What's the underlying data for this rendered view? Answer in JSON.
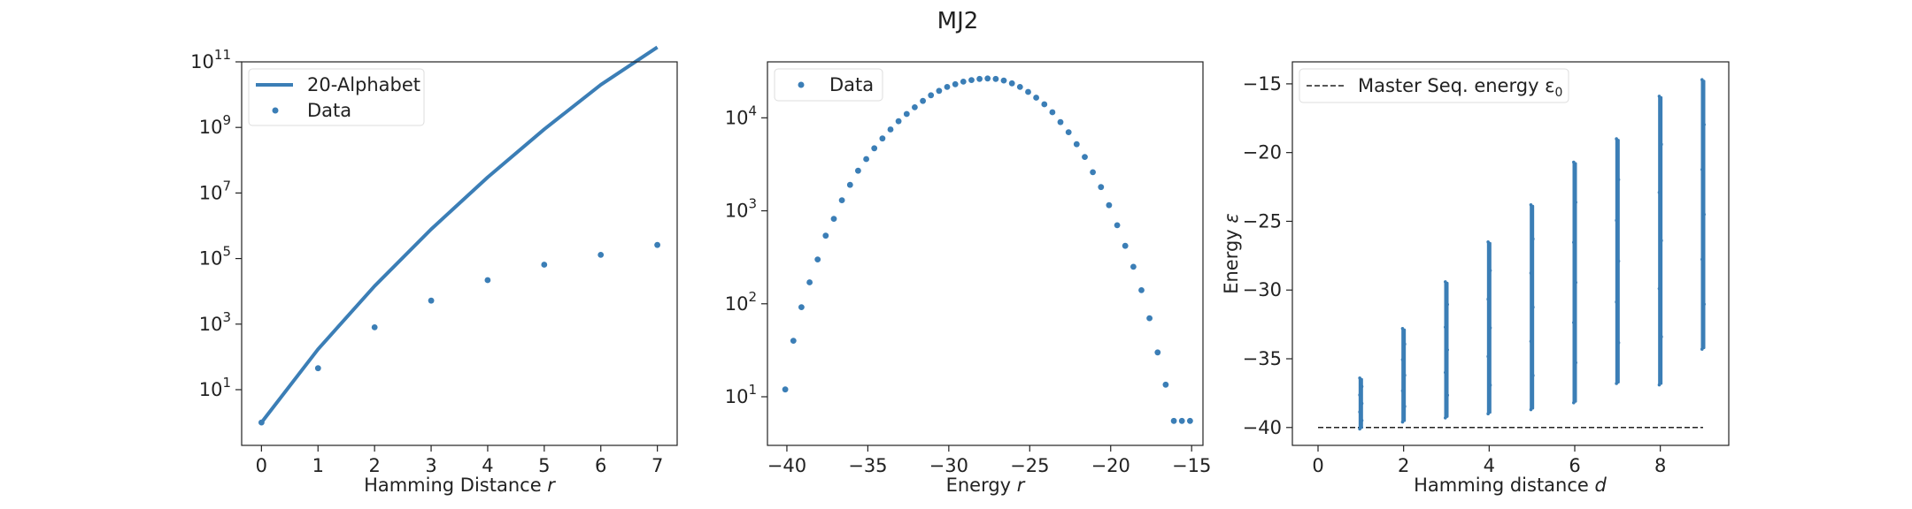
{
  "figure": {
    "title": "MJ2",
    "series_color": "#3b7eb6"
  },
  "chart_data": [
    {
      "type": "line",
      "xlabel": "Hamming Distance r",
      "ylabel": "",
      "yscale": "log",
      "xlim": [
        -0.35,
        7.35
      ],
      "ylim": [
        0.2,
        100000000000
      ],
      "x_ticks": [
        0,
        1,
        2,
        3,
        4,
        5,
        6,
        7
      ],
      "y_ticks": [
        10,
        1000,
        100000,
        10000000,
        1000000000,
        100000000000
      ],
      "y_tick_labels": [
        {
          "base": "10",
          "exp": "1"
        },
        {
          "base": "10",
          "exp": "3"
        },
        {
          "base": "10",
          "exp": "5"
        },
        {
          "base": "10",
          "exp": "7"
        },
        {
          "base": "10",
          "exp": "9"
        },
        {
          "base": "10",
          "exp": "11"
        }
      ],
      "grid": false,
      "legend": "upper-left",
      "series": [
        {
          "name": "20-Alphabet",
          "kind": "line",
          "x": [
            0,
            1,
            2,
            3,
            4,
            5,
            6,
            7
          ],
          "y": [
            1,
            171,
            14535,
            785460,
            30239000,
            877000000,
            20000000000,
            280000000000
          ]
        },
        {
          "name": "Data",
          "kind": "points",
          "x": [
            0,
            1,
            2,
            3,
            4,
            5,
            6,
            7
          ],
          "y": [
            1,
            45,
            800,
            5200,
            22000,
            65000,
            130000,
            260000
          ]
        }
      ]
    },
    {
      "type": "scatter",
      "xlabel": "Energy r",
      "ylabel": "",
      "yscale": "log",
      "xlim": [
        -41.2,
        -14.3
      ],
      "ylim": [
        3,
        40000
      ],
      "x_ticks": [
        -40,
        -35,
        -30,
        -25,
        -20,
        -15
      ],
      "x_tick_labels": [
        "−40",
        "−35",
        "−30",
        "−25",
        "−20",
        "−15"
      ],
      "y_ticks": [
        10,
        100,
        1000,
        10000
      ],
      "y_tick_labels": [
        {
          "base": "10",
          "exp": "1"
        },
        {
          "base": "10",
          "exp": "2"
        },
        {
          "base": "10",
          "exp": "3"
        },
        {
          "base": "10",
          "exp": "4"
        }
      ],
      "grid": false,
      "legend": "upper-left",
      "series": [
        {
          "name": "Data",
          "kind": "points",
          "x": [
            -40.1,
            -39.6,
            -39.1,
            -38.6,
            -38.1,
            -37.6,
            -37.1,
            -36.6,
            -36.1,
            -35.6,
            -35.1,
            -34.6,
            -34.1,
            -33.6,
            -33.1,
            -32.6,
            -32.1,
            -31.6,
            -31.1,
            -30.6,
            -30.1,
            -29.6,
            -29.1,
            -28.6,
            -28.1,
            -27.6,
            -27.1,
            -26.6,
            -26.1,
            -25.6,
            -25.1,
            -24.6,
            -24.1,
            -23.6,
            -23.1,
            -22.6,
            -22.1,
            -21.6,
            -21.1,
            -20.6,
            -20.1,
            -19.6,
            -19.1,
            -18.6,
            -18.1,
            -17.6,
            -17.1,
            -16.6,
            -16.1,
            -15.6,
            -15.1
          ],
          "y": [
            12,
            40,
            92,
            170,
            300,
            540,
            820,
            1300,
            1900,
            2700,
            3600,
            4700,
            6000,
            7500,
            9200,
            11000,
            13000,
            15200,
            17500,
            19500,
            21500,
            23000,
            24500,
            25500,
            26200,
            26500,
            26200,
            25200,
            23500,
            21500,
            19000,
            16500,
            14000,
            11500,
            9000,
            7000,
            5200,
            3800,
            2600,
            1800,
            1150,
            700,
            420,
            250,
            140,
            70,
            30,
            13.5,
            5.5,
            5.5,
            5.5
          ]
        }
      ]
    },
    {
      "type": "scatter",
      "xlabel": "Hamming distance d",
      "ylabel": "Energy ε",
      "yscale": "linear",
      "xlim": [
        -0.6,
        9.6
      ],
      "ylim": [
        -41.3,
        -13.4
      ],
      "x_ticks": [
        0,
        2,
        4,
        6,
        8
      ],
      "y_ticks": [
        -40,
        -35,
        -30,
        -25,
        -20,
        -15
      ],
      "y_tick_labels": [
        "−40",
        "−35",
        "−30",
        "−25",
        "−20",
        "−15"
      ],
      "grid": false,
      "legend": "upper-left",
      "reference_line": {
        "name": "Master Seq. energy ε",
        "subscript": "0",
        "y": -40,
        "x_range": [
          0,
          9
        ]
      },
      "columns": [
        {
          "d": 1,
          "y_min": -40.1,
          "y_max": -36.4
        },
        {
          "d": 2,
          "y_min": -39.6,
          "y_max": -32.8
        },
        {
          "d": 3,
          "y_min": -39.3,
          "y_max": -29.4
        },
        {
          "d": 4,
          "y_min": -39.0,
          "y_max": -26.5
        },
        {
          "d": 5,
          "y_min": -38.7,
          "y_max": -23.8
        },
        {
          "d": 6,
          "y_min": -38.2,
          "y_max": -20.7
        },
        {
          "d": 7,
          "y_min": -36.8,
          "y_max": -19.0
        },
        {
          "d": 8,
          "y_min": -36.9,
          "y_max": -15.9
        },
        {
          "d": 9,
          "y_min": -34.3,
          "y_max": -14.7
        }
      ]
    }
  ]
}
